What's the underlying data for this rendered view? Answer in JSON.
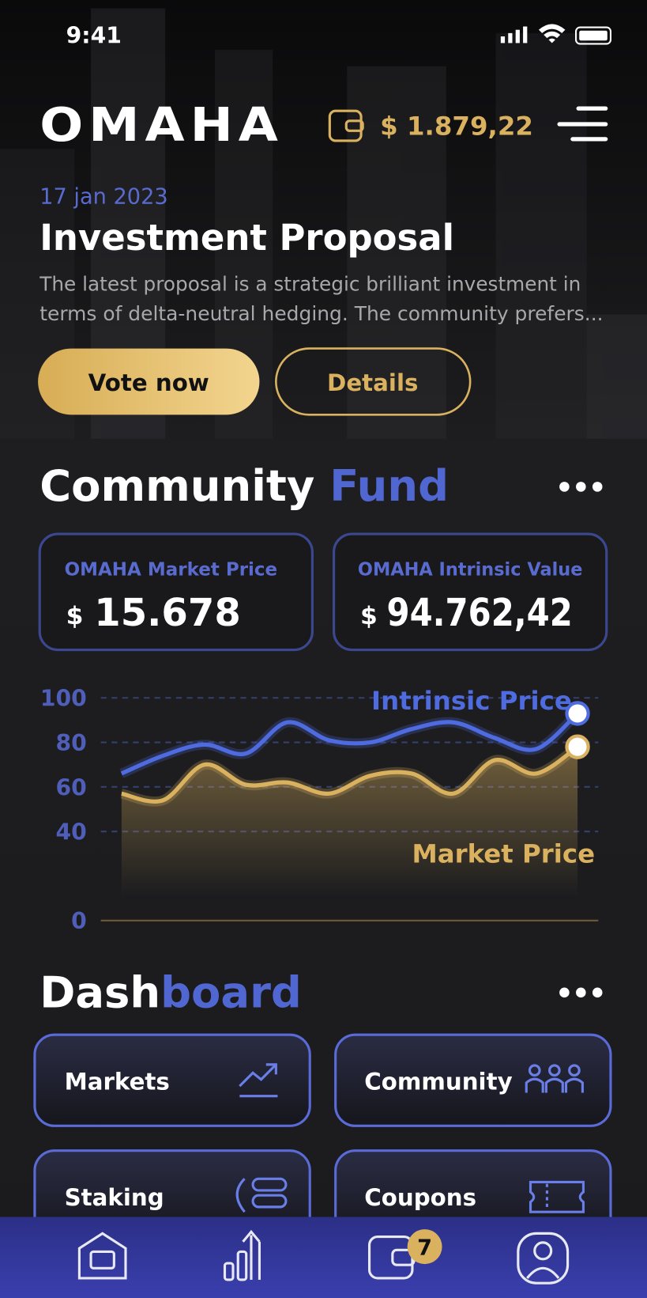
{
  "status_bar": {
    "time": "9:41"
  },
  "header": {
    "brand": "OMAHA",
    "balance": "$ 1.879,22"
  },
  "proposal": {
    "date": "17 jan 2023",
    "title": "Investment Proposal",
    "description": [
      "The latest proposal is a strategic brilliant investment in",
      "terms of delta-neutral hedging. The community prefers..."
    ],
    "buttons": [
      "Vote now",
      "Details"
    ]
  },
  "community_fund": {
    "title": [
      "Community",
      "Fund"
    ],
    "cards": [
      {
        "label": "OMAHA Market Price",
        "currency": "$",
        "value": "15.678"
      },
      {
        "label": "OMAHA Intrinsic Value",
        "currency": "$",
        "value": "94.762,42"
      }
    ]
  },
  "chart_data": {
    "type": "line",
    "categories": [
      null,
      null,
      null,
      null,
      null,
      null,
      null,
      null,
      null,
      null,
      null,
      null
    ],
    "series": [
      {
        "name": "Intrinsic Price",
        "color": "#4f6be0",
        "values": [
          66,
          74,
          79,
          75,
          89,
          81,
          80,
          86,
          89,
          82,
          77,
          93
        ]
      },
      {
        "name": "Market Price",
        "color": "#d9b15f",
        "values": [
          57,
          54,
          70,
          61,
          62,
          57,
          65,
          66,
          57,
          72,
          66,
          78
        ]
      }
    ],
    "ylim": [
      0,
      100
    ],
    "yticks": [
      0,
      40,
      60,
      80,
      100
    ],
    "grid": true
  },
  "dashboard": {
    "title": [
      "Dash",
      "board"
    ],
    "tiles": [
      "Markets",
      "Community",
      "Staking",
      "Coupons"
    ]
  },
  "nav": {
    "badge": "7"
  }
}
